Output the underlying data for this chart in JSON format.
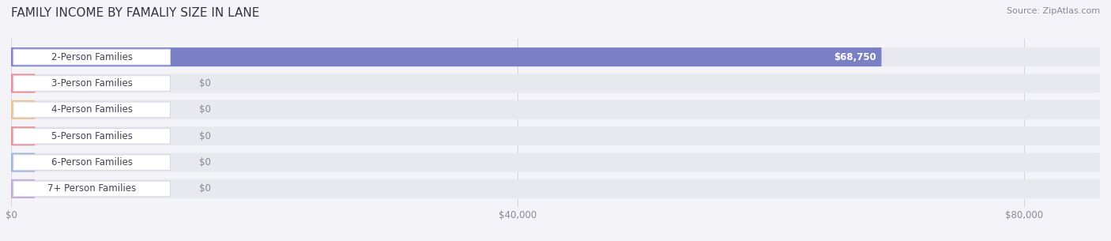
{
  "title": "FAMILY INCOME BY FAMALIY SIZE IN LANE",
  "source": "Source: ZipAtlas.com",
  "categories": [
    "2-Person Families",
    "3-Person Families",
    "4-Person Families",
    "5-Person Families",
    "6-Person Families",
    "7+ Person Families"
  ],
  "values": [
    68750,
    0,
    0,
    0,
    0,
    0
  ],
  "bar_colors": [
    "#7b7fc4",
    "#f08898",
    "#f5c080",
    "#e89090",
    "#a0b4e0",
    "#c0a8d8"
  ],
  "value_label_color": "#888899",
  "xlim_max": 86000,
  "xtick_values": [
    0,
    40000,
    80000
  ],
  "xtick_labels": [
    "$0",
    "$40,000",
    "$80,000"
  ],
  "background_color": "#f4f4f8",
  "bar_bg_color": "#e8e8ef",
  "bar_height": 0.72,
  "annotation_value": "$68,750",
  "title_fontsize": 11,
  "source_fontsize": 8,
  "label_fontsize": 8.5,
  "tick_fontsize": 8.5,
  "row_gap_color": "#f4f4f8"
}
